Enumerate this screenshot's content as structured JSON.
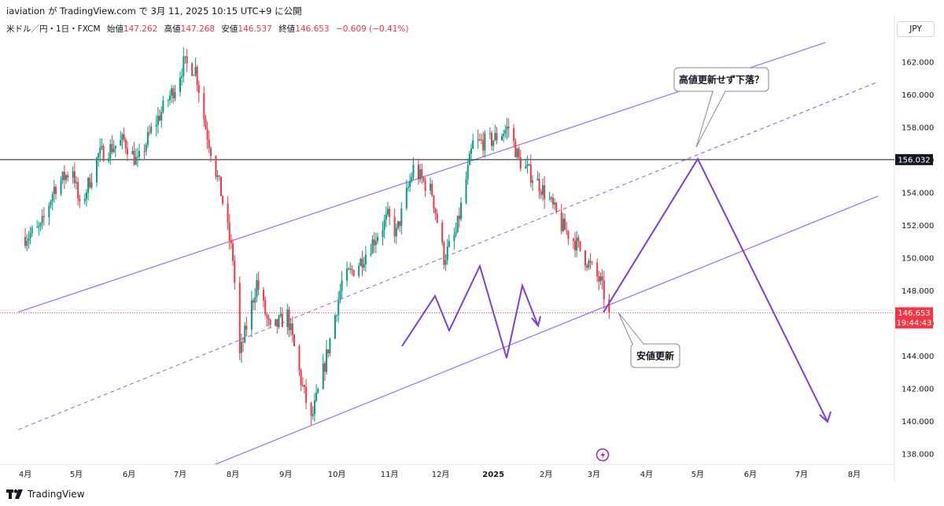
{
  "header": {
    "publisher": "iaviation が TradingView.com で 3月 11, 2025 10:15 UTC+9 に公開"
  },
  "legend": {
    "symbol": "米ドル／円・1日・FXCM",
    "open_label": "始値",
    "open": "147.262",
    "high_label": "高値",
    "high": "147.268",
    "low_label": "安値",
    "low": "146.537",
    "close_label": "終値",
    "close": "146.653",
    "change": "−0.609 (−0.41%)"
  },
  "currency_button": "JPY",
  "footer": {
    "brand": "TradingView"
  },
  "colors": {
    "up": "#089981",
    "down": "#f23645",
    "channel": "#9c6cf0",
    "scenario": "#7c3fd6",
    "hline": "#131722"
  },
  "chart_data": {
    "type": "candlestick",
    "y_axis_ticks": [
      "138.000",
      "140.000",
      "142.000",
      "144.000",
      "146.000",
      "148.000",
      "150.000",
      "152.000",
      "154.000",
      "156.000",
      "158.000",
      "160.000",
      "162.000"
    ],
    "ylim": [
      137,
      164
    ],
    "x_axis_ticks": [
      "4月",
      "5月",
      "6月",
      "7月",
      "8月",
      "9月",
      "10月",
      "11月",
      "12月",
      "2025",
      "2月",
      "3月",
      "4月",
      "5月",
      "6月",
      "7月",
      "8月"
    ],
    "price_path": [
      [
        "2024-04-01",
        151.3
      ],
      [
        "2024-04-10",
        151.8
      ],
      [
        "2024-04-18",
        154.3
      ],
      [
        "2024-04-29",
        155.5
      ],
      [
        "2024-05-03",
        153.0
      ],
      [
        "2024-05-14",
        156.3
      ],
      [
        "2024-05-29",
        157.2
      ],
      [
        "2024-06-06",
        155.8
      ],
      [
        "2024-06-14",
        157.8
      ],
      [
        "2024-06-28",
        160.5
      ],
      [
        "2024-07-03",
        161.9
      ],
      [
        "2024-07-10",
        161.6
      ],
      [
        "2024-07-16",
        158.0
      ],
      [
        "2024-07-25",
        154.0
      ],
      [
        "2024-08-01",
        150.0
      ],
      [
        "2024-08-05",
        144.0
      ],
      [
        "2024-08-15",
        148.5
      ],
      [
        "2024-08-23",
        145.5
      ],
      [
        "2024-09-02",
        146.5
      ],
      [
        "2024-09-10",
        142.5
      ],
      [
        "2024-09-16",
        140.0
      ],
      [
        "2024-09-24",
        143.5
      ],
      [
        "2024-10-04",
        148.5
      ],
      [
        "2024-10-15",
        149.8
      ],
      [
        "2024-10-31",
        152.5
      ],
      [
        "2024-11-05",
        151.5
      ],
      [
        "2024-11-15",
        155.5
      ],
      [
        "2024-11-26",
        154.0
      ],
      [
        "2024-12-03",
        150.0
      ],
      [
        "2024-12-10",
        151.5
      ],
      [
        "2024-12-20",
        157.0
      ],
      [
        "2024-12-31",
        157.2
      ],
      [
        "2025-01-10",
        158.0
      ],
      [
        "2025-01-16",
        156.0
      ],
      [
        "2025-01-28",
        154.5
      ],
      [
        "2025-02-03",
        153.5
      ],
      [
        "2025-02-10",
        152.0
      ],
      [
        "2025-02-18",
        151.0
      ],
      [
        "2025-02-27",
        149.5
      ],
      [
        "2025-03-05",
        148.5
      ],
      [
        "2025-03-10",
        146.65
      ]
    ],
    "last_price": "146.653",
    "countdown": "19:44:43",
    "horizontal_line": {
      "value": "156.032"
    },
    "channel": {
      "upper": [
        [
          "2024-03-28",
          146.7
        ],
        [
          "2025-07-15",
          163.2
        ]
      ],
      "lower": [
        [
          "2024-07-20",
          137.3
        ],
        [
          "2025-08-15",
          153.8
        ]
      ],
      "mid": [
        [
          "2024-03-28",
          139.5
        ],
        [
          "2025-08-15",
          160.8
        ]
      ]
    },
    "annotations": [
      {
        "text": "高値更新せず下落？"
      },
      {
        "text": "安値更新"
      }
    ]
  }
}
